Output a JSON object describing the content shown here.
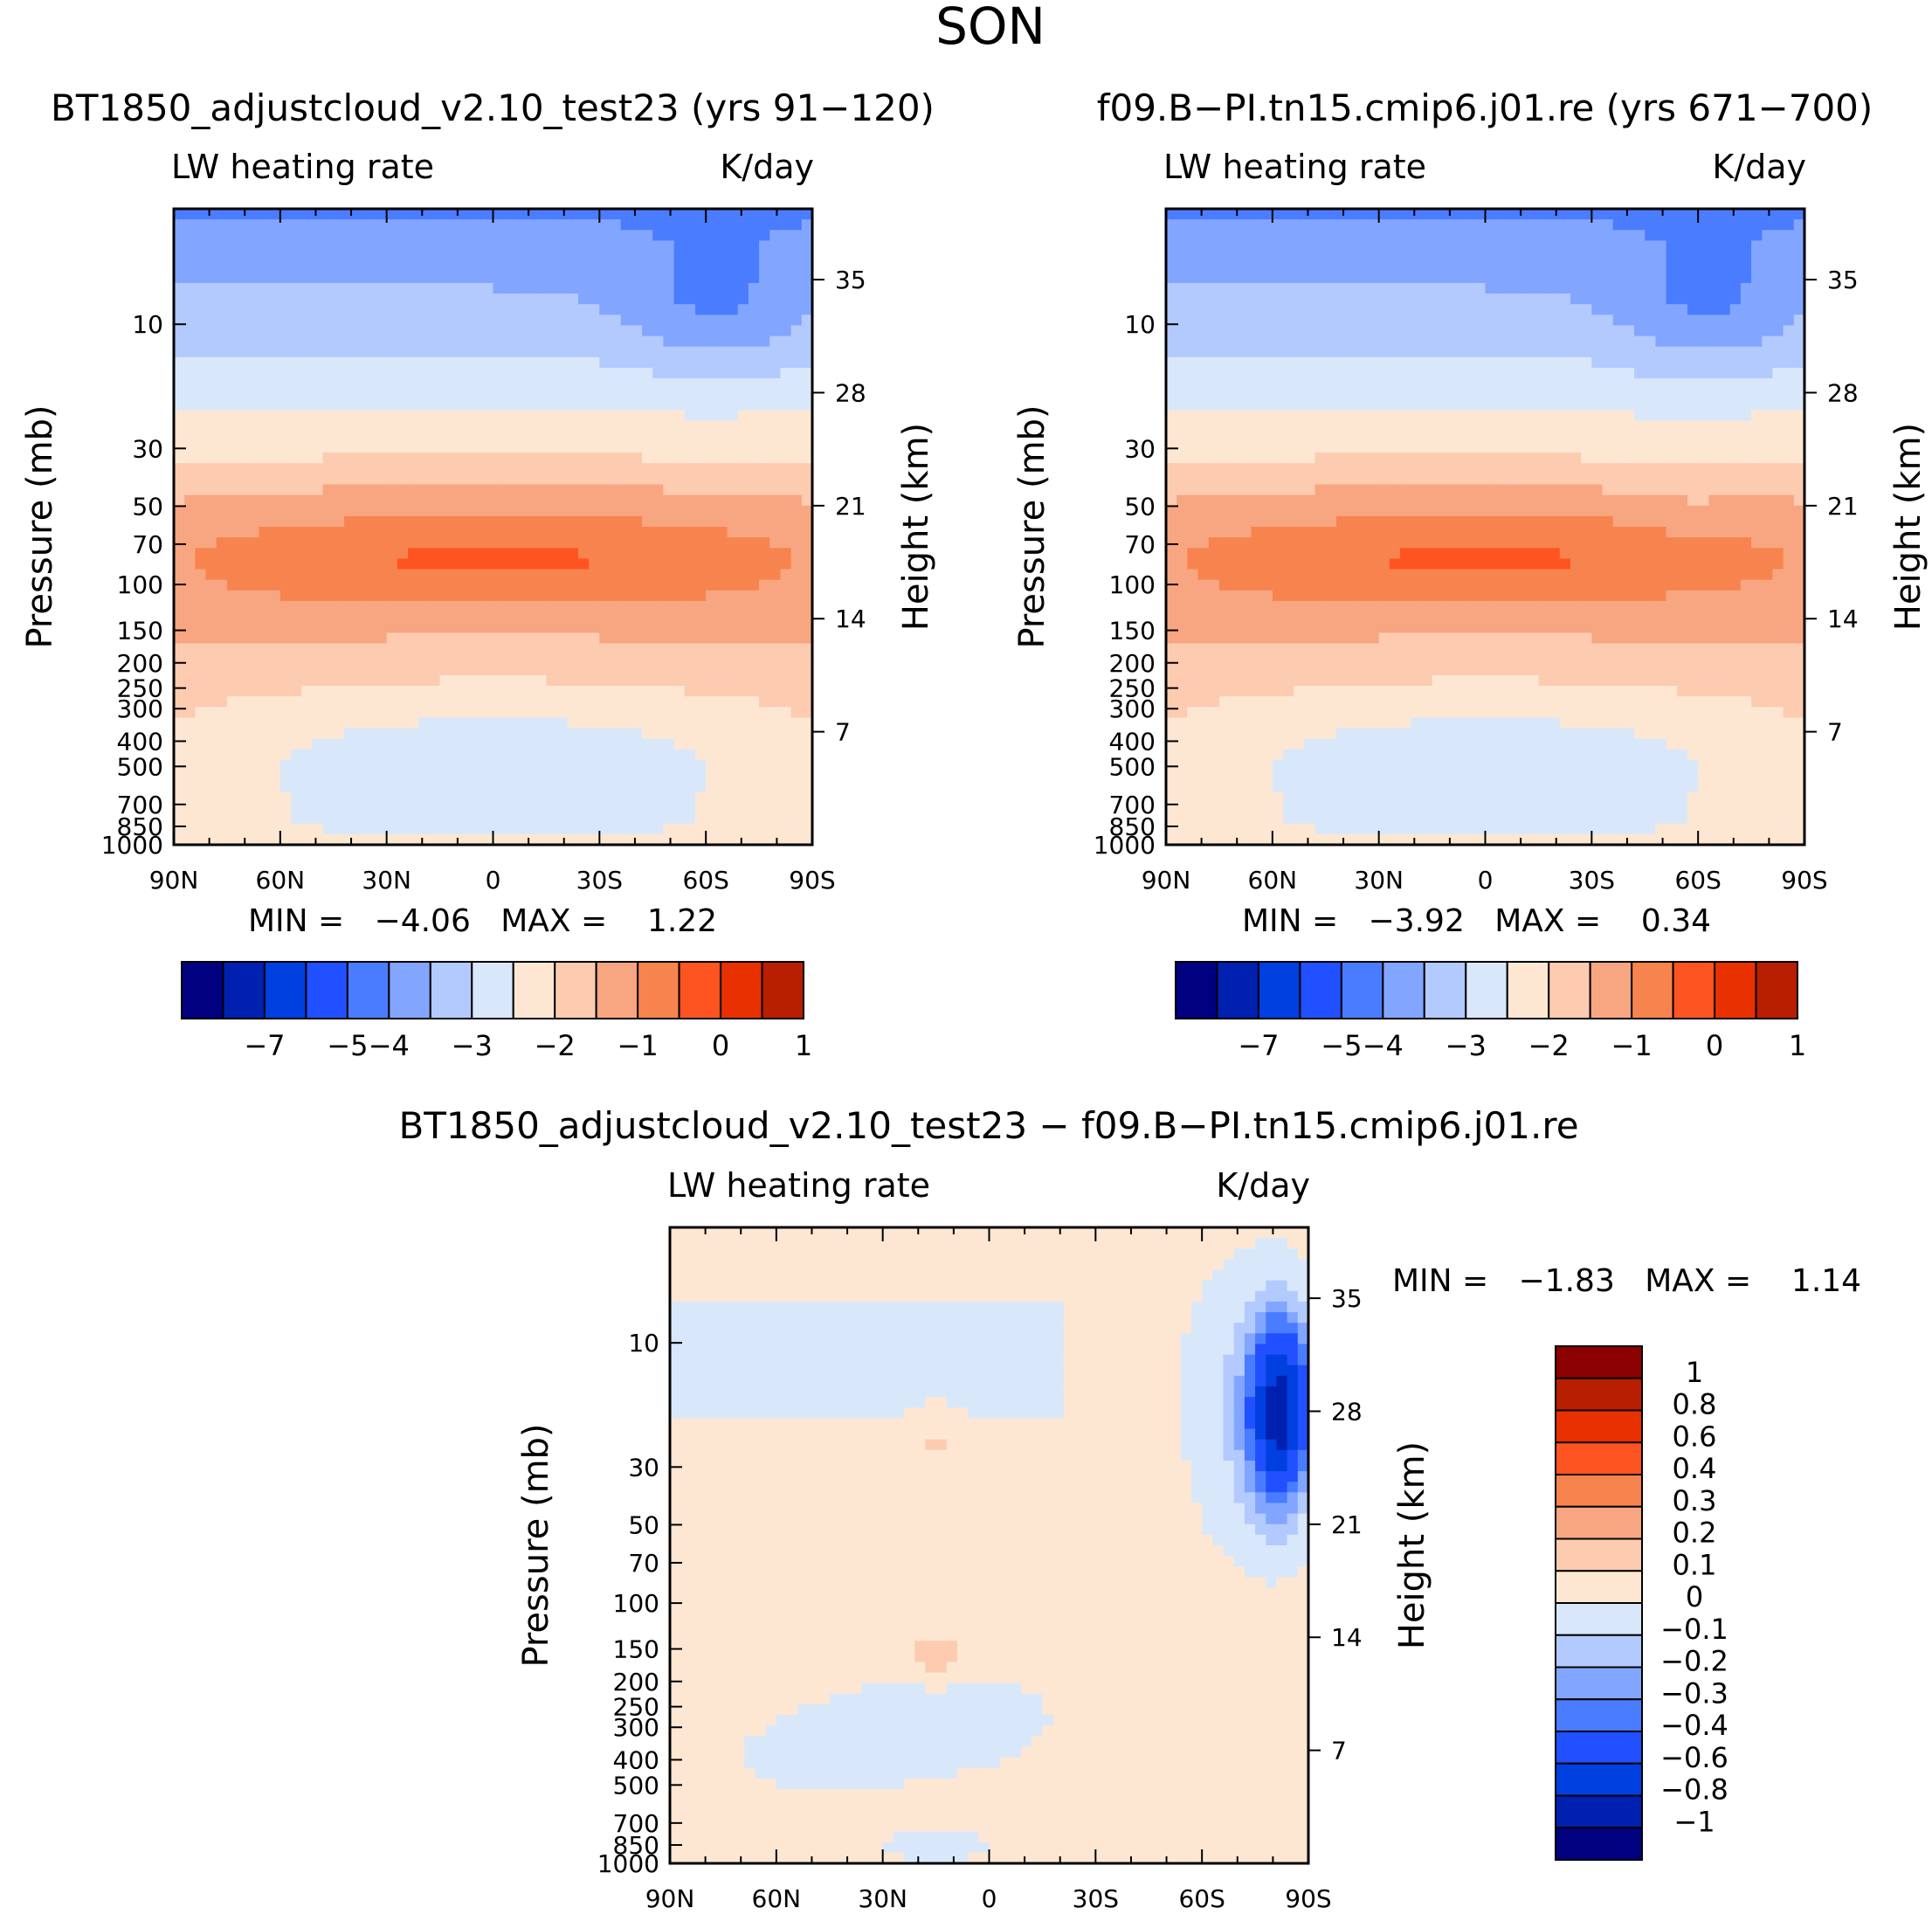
{
  "figure": {
    "title": "SON",
    "colors": {
      "anchors": [
        "#000080",
        "#0020B0",
        "#0040E0",
        "#2050FF",
        "#4A7CFF",
        "#82A6FF",
        "#B3CAFF",
        "#D8E8FA",
        "#FDE7D3",
        "#FCCBB0",
        "#F8A681",
        "#F7844E",
        "#FE5421",
        "#E83000",
        "#B81E00",
        "#8B0000"
      ]
    }
  },
  "chart_data": [
    {
      "id": "top-left",
      "type": "heatmap",
      "title": "BT1850_adjustcloud_v2.10_test23 (yrs 91−120)",
      "left_label": "LW heating rate",
      "right_label": "K/day",
      "xlabel": "",
      "ylabel": "Pressure (mb)",
      "ylabel_right": "Height (km)",
      "x_ticks": [
        "90N",
        "60N",
        "30N",
        "0",
        "30S",
        "60S",
        "90S"
      ],
      "x_tick_values": [
        90,
        60,
        30,
        0,
        -30,
        -60,
        -90
      ],
      "y_ticks": [
        "10",
        "30",
        "50",
        "70",
        "100",
        "150",
        "200",
        "250",
        "300",
        "400",
        "500",
        "700",
        "850",
        "1000"
      ],
      "y_tick_values": [
        10,
        30,
        50,
        70,
        100,
        150,
        200,
        250,
        300,
        400,
        500,
        700,
        850,
        1000
      ],
      "y_range_mb": [
        3.6,
        1000
      ],
      "height_ticks": [
        "35",
        "28",
        "21",
        "14",
        "7"
      ],
      "height_tick_values": [
        35,
        28,
        21,
        14,
        7
      ],
      "stats_text": "MIN =   −4.06   MAX =    1.22",
      "min": -4.06,
      "max": 1.22,
      "colorbar": {
        "orientation": "horizontal",
        "levels": [
          -8,
          -7,
          -6,
          -5,
          -4,
          -3.5,
          -3,
          -2.5,
          -2,
          -1.5,
          -1,
          -0.5,
          0,
          0.5,
          1
        ],
        "labels": [
          "−7",
          "−5",
          "−4",
          "−3",
          "−2",
          "−1",
          "0",
          "1"
        ],
        "label_values": [
          -7,
          -5,
          -4,
          -3,
          -2,
          -1,
          0,
          1
        ]
      },
      "field_variant": 0
    },
    {
      "id": "top-right",
      "type": "heatmap",
      "title": "f09.B−PI.tn15.cmip6.j01.re (yrs 671−700)",
      "left_label": "LW heating rate",
      "right_label": "K/day",
      "xlabel": "",
      "ylabel": "Pressure (mb)",
      "ylabel_right": "Height (km)",
      "x_ticks": [
        "90N",
        "60N",
        "30N",
        "0",
        "30S",
        "60S",
        "90S"
      ],
      "x_tick_values": [
        90,
        60,
        30,
        0,
        -30,
        -60,
        -90
      ],
      "y_ticks": [
        "10",
        "30",
        "50",
        "70",
        "100",
        "150",
        "200",
        "250",
        "300",
        "400",
        "500",
        "700",
        "850",
        "1000"
      ],
      "y_tick_values": [
        10,
        30,
        50,
        70,
        100,
        150,
        200,
        250,
        300,
        400,
        500,
        700,
        850,
        1000
      ],
      "y_range_mb": [
        3.6,
        1000
      ],
      "height_ticks": [
        "35",
        "28",
        "21",
        "14",
        "7"
      ],
      "height_tick_values": [
        35,
        28,
        21,
        14,
        7
      ],
      "stats_text": "MIN =   −3.92   MAX =    0.34",
      "min": -3.92,
      "max": 0.34,
      "colorbar": {
        "orientation": "horizontal",
        "levels": [
          -8,
          -7,
          -6,
          -5,
          -4,
          -3.5,
          -3,
          -2.5,
          -2,
          -1.5,
          -1,
          -0.5,
          0,
          0.5,
          1
        ],
        "labels": [
          "−7",
          "−5",
          "−4",
          "−3",
          "−2",
          "−1",
          "0",
          "1"
        ],
        "label_values": [
          -7,
          -5,
          -4,
          -3,
          -2,
          -1,
          0,
          1
        ]
      },
      "field_variant": 1
    },
    {
      "id": "bottom-diff",
      "type": "heatmap",
      "title": "BT1850_adjustcloud_v2.10_test23 − f09.B−PI.tn15.cmip6.j01.re",
      "left_label": "LW heating rate",
      "right_label": "K/day",
      "xlabel": "",
      "ylabel": "Pressure (mb)",
      "ylabel_right": "Height (km)",
      "x_ticks": [
        "90N",
        "60N",
        "30N",
        "0",
        "30S",
        "60S",
        "90S"
      ],
      "x_tick_values": [
        90,
        60,
        30,
        0,
        -30,
        -60,
        -90
      ],
      "y_ticks": [
        "10",
        "30",
        "50",
        "70",
        "100",
        "150",
        "200",
        "250",
        "300",
        "400",
        "500",
        "700",
        "850",
        "1000"
      ],
      "y_tick_values": [
        10,
        30,
        50,
        70,
        100,
        150,
        200,
        250,
        300,
        400,
        500,
        700,
        850,
        1000
      ],
      "y_range_mb": [
        3.6,
        1000
      ],
      "height_ticks": [
        "35",
        "28",
        "21",
        "14",
        "7"
      ],
      "height_tick_values": [
        35,
        28,
        21,
        14,
        7
      ],
      "stats_text": "MIN =   −1.83   MAX =    1.14",
      "min": -1.83,
      "max": 1.14,
      "colorbar": {
        "orientation": "vertical",
        "levels": [
          -1.2,
          -1,
          -0.8,
          -0.6,
          -0.4,
          -0.3,
          -0.2,
          -0.1,
          0,
          0.1,
          0.2,
          0.3,
          0.4,
          0.6,
          0.8,
          1,
          1.2
        ],
        "labels": [
          "1",
          "0.8",
          "0.6",
          "0.4",
          "0.3",
          "0.2",
          "0.1",
          "0",
          "−0.1",
          "−0.2",
          "−0.3",
          "−0.4",
          "−0.6",
          "−0.8",
          "−1"
        ],
        "label_values": [
          1,
          0.8,
          0.6,
          0.4,
          0.3,
          0.2,
          0.1,
          0,
          -0.1,
          -0.2,
          -0.3,
          -0.4,
          -0.6,
          -0.8,
          -1
        ]
      }
    }
  ]
}
